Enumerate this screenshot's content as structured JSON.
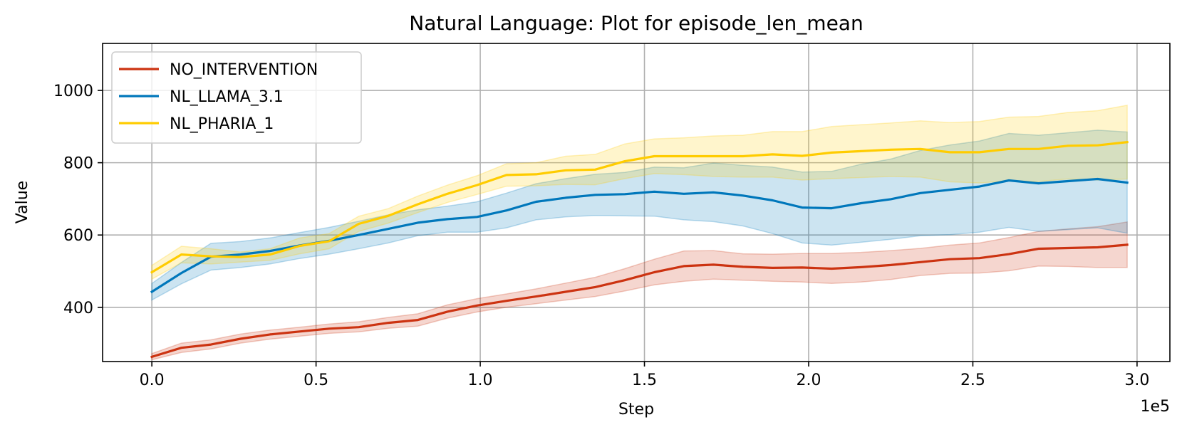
{
  "chart_data": {
    "type": "line",
    "title": "Natural Language: Plot for episode_len_mean",
    "xlabel": "Step",
    "ylabel": "Value",
    "x_offset_label": "1e5",
    "xlim": [
      -0.15,
      3.1
    ],
    "ylim": [
      250,
      1130
    ],
    "xticks": [
      0.0,
      0.5,
      1.0,
      1.5,
      2.0,
      2.5,
      3.0
    ],
    "xtick_labels": [
      "0.0",
      "0.5",
      "1.0",
      "1.5",
      "2.0",
      "2.5",
      "3.0"
    ],
    "yticks": [
      400,
      600,
      800,
      1000
    ],
    "ytick_labels": [
      "400",
      "600",
      "800",
      "1000"
    ],
    "grid": true,
    "legend_position": "top-left",
    "x": [
      0.0,
      0.09,
      0.18,
      0.27,
      0.36,
      0.45,
      0.54,
      0.63,
      0.72,
      0.81,
      0.9,
      0.99,
      1.08,
      1.17,
      1.26,
      1.35,
      1.44,
      1.53,
      1.62,
      1.71,
      1.8,
      1.89,
      1.98,
      2.07,
      2.16,
      2.25,
      2.34,
      2.43,
      2.52,
      2.61,
      2.7,
      2.79,
      2.88,
      2.97
    ],
    "series": [
      {
        "name": "NO_INTERVENTION",
        "color": "#cc3311",
        "values": [
          263,
          288,
          297,
          313,
          325,
          333,
          341,
          345,
          357,
          365,
          388,
          405,
          418,
          430,
          443,
          456,
          475,
          497,
          514,
          518,
          512,
          509,
          510,
          507,
          511,
          517,
          525,
          533,
          536,
          547,
          562,
          564,
          566,
          573
        ],
        "lower": [
          255,
          275,
          285,
          301,
          312,
          320,
          328,
          332,
          342,
          348,
          370,
          387,
          400,
          410,
          420,
          430,
          445,
          462,
          472,
          478,
          475,
          472,
          470,
          466,
          470,
          477,
          488,
          494,
          495,
          501,
          514,
          513,
          510,
          510
        ],
        "upper": [
          272,
          301,
          310,
          326,
          337,
          345,
          354,
          360,
          372,
          382,
          407,
          424,
          437,
          451,
          467,
          483,
          507,
          533,
          556,
          557,
          548,
          547,
          549,
          549,
          552,
          557,
          563,
          572,
          578,
          593,
          610,
          617,
          623,
          636
        ]
      },
      {
        "name": "NL_LLAMA_3.1",
        "color": "#0077bb",
        "values": [
          443,
          495,
          540,
          546,
          556,
          571,
          584,
          600,
          617,
          634,
          644,
          650,
          668,
          692,
          703,
          711,
          713,
          720,
          714,
          718,
          709,
          696,
          676,
          674,
          688,
          699,
          716,
          725,
          734,
          751,
          743,
          749,
          755,
          745
        ],
        "lower": [
          420,
          465,
          503,
          510,
          520,
          535,
          547,
          562,
          578,
          598,
          608,
          608,
          620,
          642,
          650,
          654,
          653,
          652,
          642,
          637,
          625,
          604,
          578,
          572,
          580,
          588,
          598,
          601,
          608,
          621,
          610,
          615,
          620,
          605
        ],
        "upper": [
          466,
          524,
          577,
          582,
          592,
          607,
          621,
          638,
          656,
          670,
          680,
          692,
          716,
          742,
          756,
          768,
          773,
          788,
          786,
          799,
          793,
          788,
          774,
          776,
          796,
          810,
          834,
          849,
          860,
          881,
          876,
          883,
          890,
          885
        ]
      },
      {
        "name": "NL_PHARIA_1",
        "color": "#ffcc00",
        "values": [
          497,
          546,
          541,
          539,
          546,
          570,
          583,
          631,
          653,
          685,
          714,
          738,
          766,
          768,
          779,
          781,
          804,
          818,
          818,
          818,
          818,
          823,
          819,
          828,
          832,
          836,
          838,
          829,
          829,
          838,
          838,
          847,
          848,
          857
        ],
        "lower": [
          478,
          523,
          520,
          525,
          530,
          548,
          562,
          610,
          633,
          662,
          690,
          712,
          735,
          736,
          740,
          739,
          756,
          770,
          767,
          762,
          760,
          760,
          752,
          756,
          759,
          762,
          760,
          747,
          744,
          750,
          748,
          755,
          752,
          755
        ],
        "upper": [
          516,
          569,
          562,
          553,
          562,
          592,
          604,
          652,
          673,
          708,
          738,
          764,
          797,
          800,
          818,
          823,
          852,
          866,
          869,
          874,
          876,
          886,
          886,
          900,
          905,
          910,
          916,
          911,
          914,
          926,
          928,
          939,
          944,
          959
        ]
      }
    ]
  }
}
